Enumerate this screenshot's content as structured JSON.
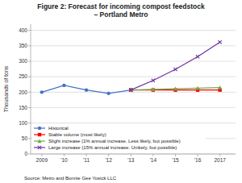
{
  "chart_data": {
    "type": "line",
    "title": "Figure 2: Forecast for incoming compost feedstock\n– Portland Metro",
    "y_label": "Thousands of tons",
    "annotations": [
      "Source: Metro and Bonnie Gee Yosick LLC"
    ],
    "x": [
      2009,
      2010,
      2011,
      2012,
      2013,
      2014,
      2015,
      2016,
      2017
    ],
    "series": [
      {
        "name": "Historical",
        "color": "#4472C4",
        "marker": "circle",
        "values": [
          200,
          222,
          207,
          196,
          207,
          null,
          null,
          null,
          null
        ]
      },
      {
        "name": "Stable volume (most likely)",
        "color": "#FF0000",
        "marker": "square",
        "values": [
          null,
          null,
          null,
          null,
          207,
          207,
          207,
          207,
          207
        ]
      },
      {
        "name": "Slight increase (1% annual increase. Less likely, but possible)",
        "color": "#70AD47",
        "marker": "triangle",
        "values": [
          null,
          null,
          null,
          null,
          207,
          209,
          211,
          213,
          215
        ]
      },
      {
        "name": "Large increase (15% annual increase. Unikely, but possible)",
        "color": "#7030A0",
        "marker": "x",
        "values": [
          null,
          null,
          null,
          null,
          207,
          238,
          274,
          315,
          362
        ]
      }
    ],
    "xlim": [
      2008.5,
      2017.7
    ],
    "xticks": [
      2009,
      {
        "value": 2010,
        "label": "'10"
      },
      {
        "value": 2011,
        "label": "'11"
      },
      {
        "value": 2012,
        "label": "'12"
      },
      {
        "value": 2013,
        "label": "'13"
      },
      {
        "value": 2014,
        "label": "'14"
      },
      {
        "value": 2015,
        "label": "'15"
      },
      {
        "value": 2016,
        "label": "'16"
      },
      2017
    ],
    "ylim": [
      0,
      420
    ],
    "yticks": [
      0,
      50,
      100,
      150,
      200,
      250,
      300,
      350,
      400
    ],
    "grid": true,
    "legend": "lower left"
  }
}
